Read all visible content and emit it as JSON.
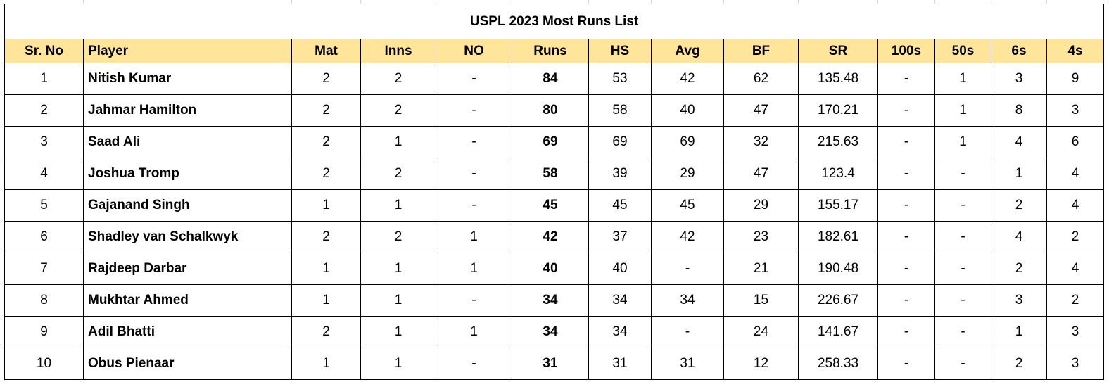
{
  "table": {
    "title": "USPL 2023 Most Runs List",
    "columns": [
      "Sr. No",
      "Player",
      "Mat",
      "Inns",
      "NO",
      "Runs",
      "HS",
      "Avg",
      "BF",
      "SR",
      "100s",
      "50s",
      "6s",
      "4s"
    ],
    "rows": [
      [
        "1",
        "Nitish Kumar",
        "2",
        "2",
        "-",
        "84",
        "53",
        "42",
        "62",
        "135.48",
        "-",
        "1",
        "3",
        "9"
      ],
      [
        "2",
        "Jahmar Hamilton",
        "2",
        "2",
        "-",
        "80",
        "58",
        "40",
        "47",
        "170.21",
        "-",
        "1",
        "8",
        "3"
      ],
      [
        "3",
        "Saad Ali",
        "2",
        "1",
        "-",
        "69",
        "69",
        "69",
        "32",
        "215.63",
        "-",
        "1",
        "4",
        "6"
      ],
      [
        "4",
        "Joshua Tromp",
        "2",
        "2",
        "-",
        "58",
        "39",
        "29",
        "47",
        "123.4",
        "-",
        "-",
        "1",
        "4"
      ],
      [
        "5",
        "Gajanand Singh",
        "1",
        "1",
        "-",
        "45",
        "45",
        "45",
        "29",
        "155.17",
        "-",
        "-",
        "2",
        "4"
      ],
      [
        "6",
        "Shadley van Schalkwyk",
        "2",
        "2",
        "1",
        "42",
        "37",
        "42",
        "23",
        "182.61",
        "-",
        "-",
        "4",
        "2"
      ],
      [
        "7",
        "Rajdeep Darbar",
        "1",
        "1",
        "1",
        "40",
        "40",
        "-",
        "21",
        "190.48",
        "-",
        "-",
        "2",
        "4"
      ],
      [
        "8",
        "Mukhtar Ahmed",
        "1",
        "1",
        "-",
        "34",
        "34",
        "34",
        "15",
        "226.67",
        "-",
        "-",
        "3",
        "2"
      ],
      [
        "9",
        "Adil Bhatti",
        "2",
        "1",
        "1",
        "34",
        "34",
        "-",
        "24",
        "141.67",
        "-",
        "-",
        "1",
        "3"
      ],
      [
        "10",
        "Obus Pienaar",
        "1",
        "1",
        "-",
        "31",
        "31",
        "31",
        "12",
        "258.33",
        "-",
        "-",
        "2",
        "3"
      ]
    ]
  },
  "colors": {
    "header_background": "#ffe599",
    "border": "#000000"
  }
}
